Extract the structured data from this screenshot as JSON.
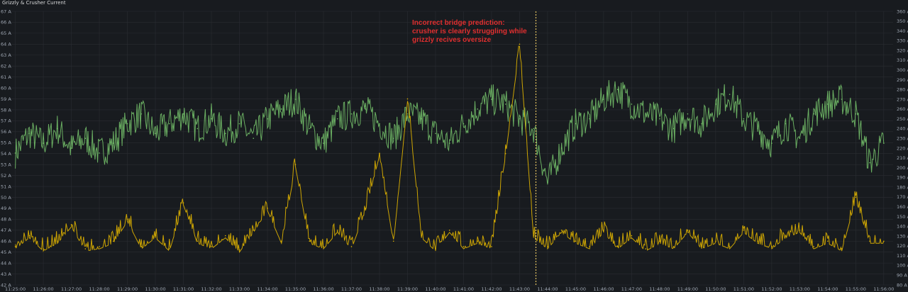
{
  "panel": {
    "title": "Grizzly & Crusher Current"
  },
  "annotation": {
    "lines": [
      "Incorrect bridge prediction:",
      "crusher is clearly struggling while",
      "grizzly recives oversize"
    ],
    "color": "#e02f2f"
  },
  "colors": {
    "background": "#181b1f",
    "grid": "#2a2d32",
    "green_series": "#73bf69",
    "yellow_series": "#e0b400",
    "marker": "#e0c060"
  },
  "chart_data": {
    "type": "line",
    "title": "Grizzly & Crusher Current",
    "xlabel": "",
    "ylabel": "",
    "x_range": [
      "11:24:50",
      "11:56:20"
    ],
    "x_ticks": [
      "11:25:00",
      "11:26:00",
      "11:27:00",
      "11:28:00",
      "11:29:00",
      "11:30:00",
      "11:31:00",
      "11:32:00",
      "11:33:00",
      "11:34:00",
      "11:35:00",
      "11:36:00",
      "11:37:00",
      "11:38:00",
      "11:39:00",
      "11:40:00",
      "11:41:00",
      "11:42:00",
      "11:43:00",
      "11:44:00",
      "11:45:00",
      "11:46:00",
      "11:47:00",
      "11:48:00",
      "11:49:00",
      "11:50:00",
      "11:51:00",
      "11:52:00",
      "11:53:00",
      "11:54:00",
      "11:55:00",
      "11:56:00"
    ],
    "y_left_ticks": [
      "67 A",
      "66 A",
      "65 A",
      "64 A",
      "63 A",
      "62 A",
      "61 A",
      "60 A",
      "59 A",
      "58 A",
      "57 A",
      "56 A",
      "55 A",
      "54 A",
      "53 A",
      "52 A",
      "51 A",
      "50 A",
      "49 A",
      "48 A",
      "47 A",
      "46 A",
      "45 A",
      "44 A",
      "43 A",
      "42 A"
    ],
    "y_left_range": [
      42,
      67
    ],
    "y_right_ticks": [
      "360 A",
      "350 A",
      "340 A",
      "330 A",
      "320 A",
      "310 A",
      "300 A",
      "290 A",
      "280 A",
      "270 A",
      "260 A",
      "250 A",
      "240 A",
      "230 A",
      "220 A",
      "210 A",
      "200 A",
      "190 A",
      "180 A",
      "170 A",
      "160 A",
      "150 A",
      "140 A",
      "130 A",
      "120 A",
      "110 A",
      "100 A",
      "90 A",
      "80 A"
    ],
    "y_right_range": [
      80,
      360
    ],
    "marker_time": "11:43:35",
    "grid": true,
    "series": [
      {
        "axis": "right",
        "unit": "A",
        "color": "#73bf69",
        "x": [
          "11:25:00",
          "11:25:30",
          "11:26:00",
          "11:26:30",
          "11:27:00",
          "11:27:30",
          "11:28:00",
          "11:28:30",
          "11:29:00",
          "11:29:30",
          "11:30:00",
          "11:30:30",
          "11:31:00",
          "11:31:30",
          "11:32:00",
          "11:32:30",
          "11:33:00",
          "11:33:30",
          "11:34:00",
          "11:34:30",
          "11:35:00",
          "11:35:30",
          "11:36:00",
          "11:36:30",
          "11:37:00",
          "11:37:30",
          "11:38:00",
          "11:38:30",
          "11:39:00",
          "11:39:30",
          "11:40:00",
          "11:40:30",
          "11:41:00",
          "11:41:30",
          "11:42:00",
          "11:42:30",
          "11:43:00",
          "11:43:30",
          "11:44:00",
          "11:44:30",
          "11:45:00",
          "11:45:30",
          "11:46:00",
          "11:46:30",
          "11:47:00",
          "11:47:30",
          "11:48:00",
          "11:48:30",
          "11:49:00",
          "11:49:30",
          "11:50:00",
          "11:50:30",
          "11:51:00",
          "11:51:30",
          "11:52:00",
          "11:52:30",
          "11:53:00",
          "11:53:30",
          "11:54:00",
          "11:54:30",
          "11:55:00",
          "11:55:30",
          "11:56:00"
        ],
        "values": [
          215,
          235,
          225,
          240,
          220,
          230,
          215,
          225,
          245,
          255,
          235,
          245,
          255,
          240,
          250,
          235,
          245,
          230,
          250,
          260,
          270,
          240,
          225,
          250,
          255,
          260,
          245,
          230,
          255,
          250,
          235,
          225,
          245,
          260,
          270,
          265,
          250,
          240,
          185,
          220,
          245,
          250,
          270,
          280,
          265,
          255,
          250,
          240,
          255,
          245,
          265,
          275,
          250,
          240,
          225,
          245,
          230,
          255,
          265,
          270,
          255,
          205,
          225
        ]
      },
      {
        "axis": "left",
        "unit": "A",
        "color": "#e0b400",
        "x": [
          "11:25:00",
          "11:25:30",
          "11:26:00",
          "11:26:30",
          "11:27:00",
          "11:27:30",
          "11:28:00",
          "11:28:30",
          "11:29:00",
          "11:29:30",
          "11:30:00",
          "11:30:30",
          "11:31:00",
          "11:31:30",
          "11:32:00",
          "11:32:30",
          "11:33:00",
          "11:33:30",
          "11:34:00",
          "11:34:30",
          "11:35:00",
          "11:35:30",
          "11:36:00",
          "11:36:30",
          "11:37:00",
          "11:37:30",
          "11:38:00",
          "11:38:30",
          "11:39:00",
          "11:39:30",
          "11:40:00",
          "11:40:30",
          "11:41:00",
          "11:41:30",
          "11:42:00",
          "11:42:30",
          "11:43:00",
          "11:43:30",
          "11:44:00",
          "11:44:30",
          "11:45:00",
          "11:45:30",
          "11:46:00",
          "11:46:30",
          "11:47:00",
          "11:47:30",
          "11:48:00",
          "11:48:30",
          "11:49:00",
          "11:49:30",
          "11:50:00",
          "11:50:30",
          "11:51:00",
          "11:51:30",
          "11:52:00",
          "11:52:30",
          "11:53:00",
          "11:53:30",
          "11:54:00",
          "11:54:30",
          "11:55:00",
          "11:55:30",
          "11:56:00"
        ],
        "values": [
          45.5,
          46.5,
          45.3,
          46,
          47.5,
          45.3,
          45.5,
          46,
          48,
          45.5,
          46.5,
          45.3,
          49.5,
          46,
          45.5,
          46.5,
          45.2,
          47,
          49,
          46,
          53,
          46,
          45.5,
          47,
          45.5,
          49,
          54,
          46,
          59,
          46.5,
          45.3,
          47,
          45.5,
          46,
          45.5,
          54,
          64,
          46.5,
          45.5,
          47,
          46,
          45.5,
          47,
          45.5,
          46.5,
          45.3,
          46,
          45.5,
          47,
          45.5,
          46,
          45.5,
          47,
          46,
          45.5,
          46.5,
          47,
          45.5,
          46,
          45.3,
          50,
          46,
          46
        ]
      }
    ]
  }
}
